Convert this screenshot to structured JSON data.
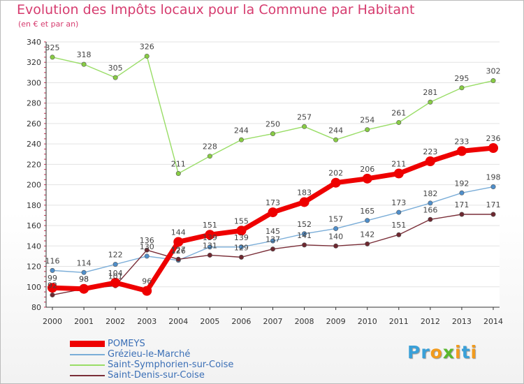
{
  "title": "Evolution des Impôts locaux pour la Commune par Habitant",
  "subtitle": "(en € et par an)",
  "logo": {
    "text": "Proxiti",
    "letters": [
      "P",
      "r",
      "o",
      "x",
      "i",
      "t",
      "i"
    ],
    "colors": [
      "#3aa0d8",
      "#3aa0d8",
      "#f29b1d",
      "#5ab82e",
      "#f29b1d",
      "#3aa0d8",
      "#f29b1d"
    ]
  },
  "chart_data": {
    "type": "line",
    "title": "Evolution des Impôts locaux pour la Commune par Habitant",
    "subtitle": "(en € et par an)",
    "x": [
      2000,
      2001,
      2002,
      2003,
      2004,
      2005,
      2006,
      2007,
      2008,
      2009,
      2010,
      2011,
      2012,
      2013,
      2014
    ],
    "ylim": [
      80,
      340
    ],
    "yticks": [
      80,
      100,
      120,
      140,
      160,
      180,
      200,
      220,
      240,
      260,
      280,
      300,
      320,
      340
    ],
    "grid": "horizontal",
    "legend_position": "bottom-left",
    "series": [
      {
        "name": "Saint-Symphorien-sur-Coise",
        "color": "#99dd66",
        "marker": "#88cc44",
        "width": 1.4,
        "values": [
          325,
          318,
          305,
          326,
          211,
          228,
          244,
          250,
          257,
          244,
          254,
          261,
          281,
          295,
          302
        ]
      },
      {
        "name": "Grézieu-le-Marché",
        "color": "#7aadd8",
        "marker": "#4f8fcb",
        "width": 1.4,
        "values": [
          116,
          114,
          122,
          130,
          126,
          139,
          139,
          145,
          152,
          157,
          165,
          173,
          182,
          192,
          198
        ]
      },
      {
        "name": "Saint-Denis-sur-Coise",
        "color": "#7a2e38",
        "marker": "#6e2830",
        "width": 1.4,
        "values": [
          92,
          98,
          101,
          136,
          127,
          131,
          129,
          137,
          141,
          140,
          142,
          151,
          166,
          171,
          171
        ]
      },
      {
        "name": "POMEYS",
        "color": "#ee0000",
        "marker": "#ee0000",
        "width": 7,
        "values": [
          99,
          98,
          104,
          96,
          144,
          151,
          155,
          173,
          183,
          202,
          206,
          211,
          223,
          233,
          236
        ]
      }
    ],
    "legend_order": [
      "POMEYS",
      "Grézieu-le-Marché",
      "Saint-Symphorien-sur-Coise",
      "Saint-Denis-sur-Coise"
    ]
  }
}
